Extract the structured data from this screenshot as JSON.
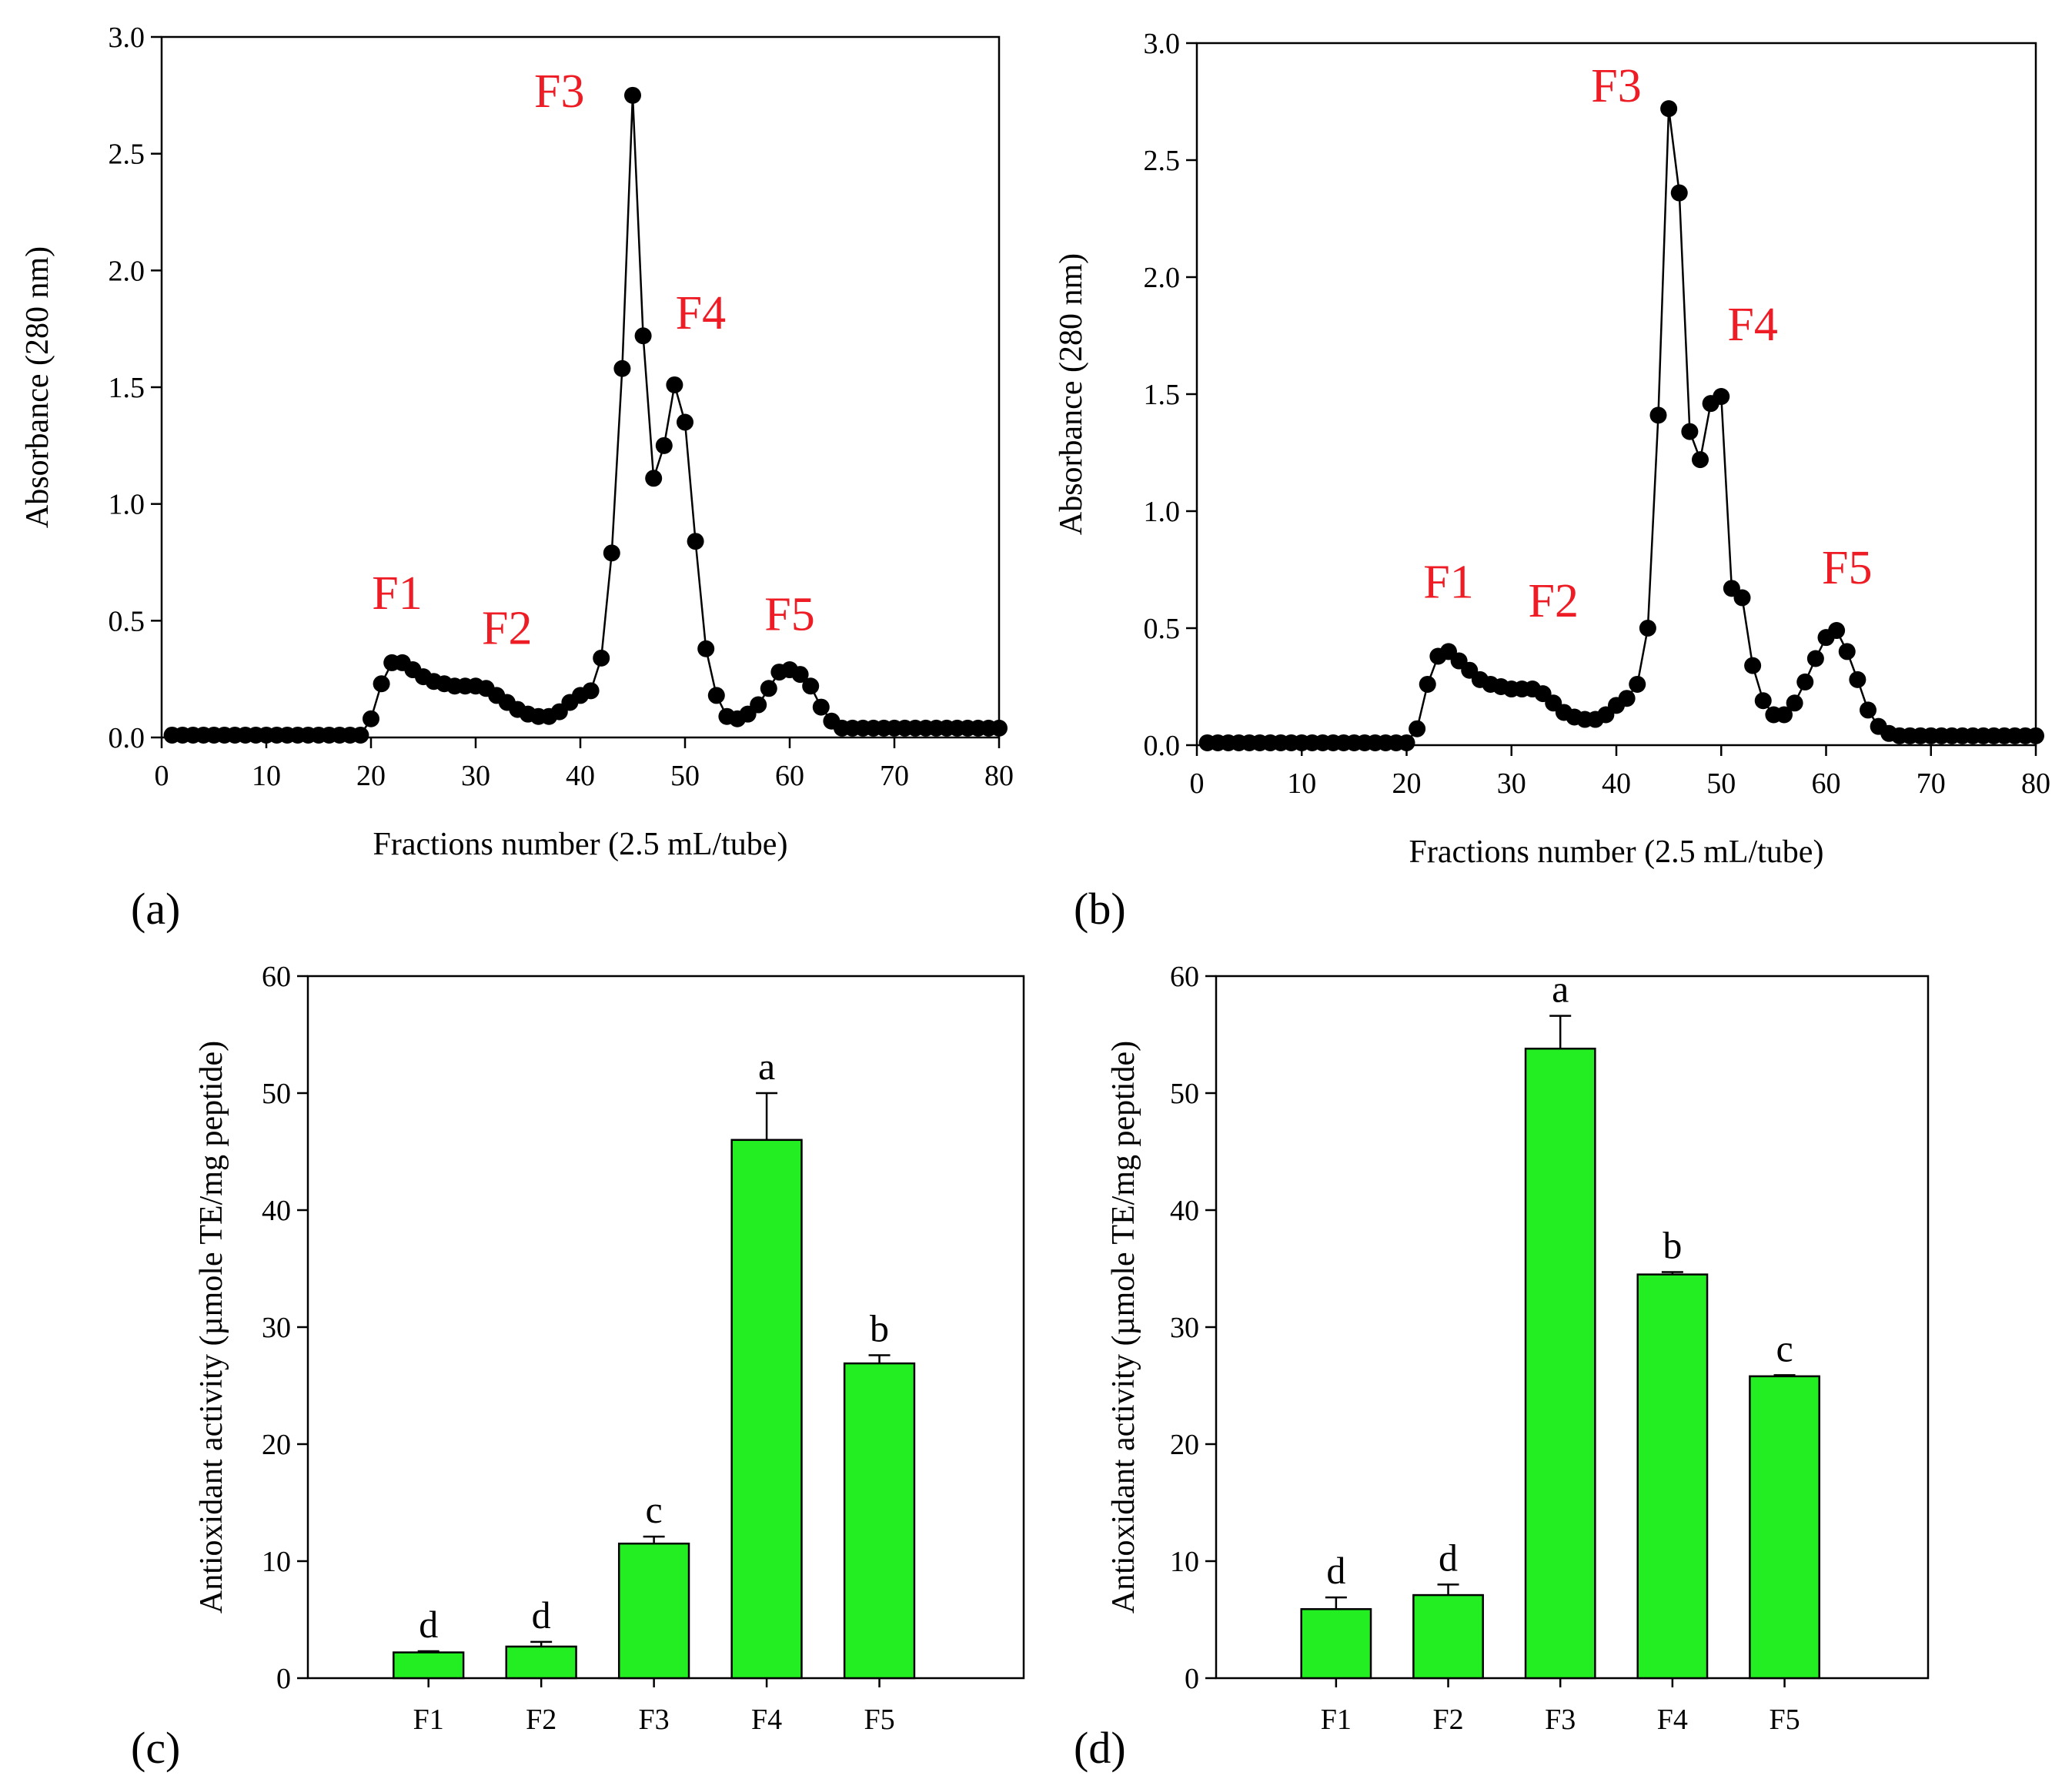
{
  "chart_data": [
    {
      "type": "line",
      "panel_label": "(a)",
      "xlabel": "Fractions number (2.5 mL/tube)",
      "ylabel": "Absorbance (280 nm)",
      "xlim": [
        0,
        80
      ],
      "ylim": [
        0,
        3.0
      ],
      "xticks": [
        "0",
        "10",
        "20",
        "30",
        "40",
        "50",
        "60",
        "70",
        "80"
      ],
      "yticks": [
        "0.0",
        "0.5",
        "1.0",
        "1.5",
        "2.0",
        "2.5",
        "3.0"
      ],
      "grid": false,
      "x": [
        1,
        2,
        3,
        4,
        5,
        6,
        7,
        8,
        9,
        10,
        11,
        12,
        13,
        14,
        15,
        16,
        17,
        18,
        19,
        20,
        21,
        22,
        23,
        24,
        25,
        26,
        27,
        28,
        29,
        30,
        31,
        32,
        33,
        34,
        35,
        36,
        37,
        38,
        39,
        40,
        41,
        42,
        43,
        44,
        45,
        46,
        47,
        48,
        49,
        50,
        51,
        52,
        53,
        54,
        55,
        56,
        57,
        58,
        59,
        60,
        61,
        62,
        63,
        64,
        65,
        66,
        67,
        68,
        69,
        70,
        71,
        72,
        73,
        74,
        75,
        76,
        77,
        78,
        79,
        80
      ],
      "y": [
        0.01,
        0.01,
        0.01,
        0.01,
        0.01,
        0.01,
        0.01,
        0.01,
        0.01,
        0.01,
        0.01,
        0.01,
        0.01,
        0.01,
        0.01,
        0.01,
        0.01,
        0.01,
        0.01,
        0.08,
        0.23,
        0.32,
        0.32,
        0.29,
        0.26,
        0.24,
        0.23,
        0.22,
        0.22,
        0.22,
        0.21,
        0.18,
        0.15,
        0.12,
        0.1,
        0.09,
        0.09,
        0.11,
        0.15,
        0.18,
        0.2,
        0.34,
        0.79,
        1.58,
        2.75,
        1.72,
        1.11,
        1.25,
        1.51,
        1.35,
        0.84,
        0.38,
        0.18,
        0.09,
        0.08,
        0.1,
        0.14,
        0.21,
        0.28,
        0.29,
        0.27,
        0.22,
        0.13,
        0.07,
        0.04,
        0.04,
        0.04,
        0.04,
        0.04,
        0.04,
        0.04,
        0.04,
        0.04,
        0.04,
        0.04,
        0.04,
        0.04,
        0.04,
        0.04,
        0.04
      ],
      "annotations": [
        {
          "text": "F1",
          "x": 22.5,
          "y": 0.55
        },
        {
          "text": "F2",
          "x": 33,
          "y": 0.4
        },
        {
          "text": "F3",
          "x": 38,
          "y": 2.7
        },
        {
          "text": "F4",
          "x": 51.5,
          "y": 1.75
        },
        {
          "text": "F5",
          "x": 60,
          "y": 0.46
        }
      ],
      "colors": {
        "line": "#000000",
        "marker": "#000000",
        "annotation": "#ee1c25"
      }
    },
    {
      "type": "line",
      "panel_label": "(b)",
      "xlabel": "Fractions number (2.5 mL/tube)",
      "ylabel": "Absorbance (280 nm)",
      "xlim": [
        0,
        80
      ],
      "ylim": [
        0,
        3.0
      ],
      "xticks": [
        "0",
        "10",
        "20",
        "30",
        "40",
        "50",
        "60",
        "70",
        "80"
      ],
      "yticks": [
        "0.0",
        "0.5",
        "1.0",
        "1.5",
        "2.0",
        "2.5",
        "3.0"
      ],
      "grid": false,
      "x": [
        1,
        2,
        3,
        4,
        5,
        6,
        7,
        8,
        9,
        10,
        11,
        12,
        13,
        14,
        15,
        16,
        17,
        18,
        19,
        20,
        21,
        22,
        23,
        24,
        25,
        26,
        27,
        28,
        29,
        30,
        31,
        32,
        33,
        34,
        35,
        36,
        37,
        38,
        39,
        40,
        41,
        42,
        43,
        44,
        45,
        46,
        47,
        48,
        49,
        50,
        51,
        52,
        53,
        54,
        55,
        56,
        57,
        58,
        59,
        60,
        61,
        62,
        63,
        64,
        65,
        66,
        67,
        68,
        69,
        70,
        71,
        72,
        73,
        74,
        75,
        76,
        77,
        78,
        79,
        80
      ],
      "y": [
        0.01,
        0.01,
        0.01,
        0.01,
        0.01,
        0.01,
        0.01,
        0.01,
        0.01,
        0.01,
        0.01,
        0.01,
        0.01,
        0.01,
        0.01,
        0.01,
        0.01,
        0.01,
        0.01,
        0.01,
        0.07,
        0.26,
        0.38,
        0.4,
        0.36,
        0.32,
        0.28,
        0.26,
        0.25,
        0.24,
        0.24,
        0.24,
        0.22,
        0.18,
        0.14,
        0.12,
        0.11,
        0.11,
        0.13,
        0.17,
        0.2,
        0.26,
        0.5,
        1.41,
        2.72,
        2.36,
        1.34,
        1.22,
        1.46,
        1.49,
        0.67,
        0.63,
        0.34,
        0.19,
        0.13,
        0.13,
        0.18,
        0.27,
        0.37,
        0.46,
        0.49,
        0.4,
        0.28,
        0.15,
        0.08,
        0.05,
        0.04,
        0.04,
        0.04,
        0.04,
        0.04,
        0.04,
        0.04,
        0.04,
        0.04,
        0.04,
        0.04,
        0.04,
        0.04,
        0.04
      ],
      "annotations": [
        {
          "text": "F1",
          "x": 24,
          "y": 0.63
        },
        {
          "text": "F2",
          "x": 34,
          "y": 0.55
        },
        {
          "text": "F3",
          "x": 40,
          "y": 2.75
        },
        {
          "text": "F4",
          "x": 53,
          "y": 1.73
        },
        {
          "text": "F5",
          "x": 62,
          "y": 0.69
        }
      ],
      "colors": {
        "line": "#000000",
        "marker": "#000000",
        "annotation": "#ee1c25"
      }
    },
    {
      "type": "bar",
      "panel_label": "(c)",
      "xlabel": "",
      "ylabel": "Antioxidant activity (µmole TE/mg peptide)",
      "categories": [
        "F1",
        "F2",
        "F3",
        "F4",
        "F5"
      ],
      "values": [
        2.2,
        2.7,
        11.5,
        46.0,
        26.9
      ],
      "errors": [
        0.1,
        0.4,
        0.6,
        4.0,
        0.7
      ],
      "labels": [
        "d",
        "d",
        "c",
        "a",
        "b"
      ],
      "ylim": [
        0,
        60
      ],
      "yticks": [
        "0",
        "10",
        "20",
        "30",
        "40",
        "50",
        "60"
      ],
      "grid": false,
      "colors": {
        "bar": "#22ee22",
        "edge": "#000000"
      }
    },
    {
      "type": "bar",
      "panel_label": "(d)",
      "xlabel": "",
      "ylabel": "Antioxidant activity (µmole TE/mg peptide)",
      "categories": [
        "F1",
        "F2",
        "F3",
        "F4",
        "F5"
      ],
      "values": [
        5.9,
        7.1,
        53.8,
        34.5,
        25.8
      ],
      "errors": [
        1.0,
        0.9,
        2.8,
        0.2,
        0.1
      ],
      "labels": [
        "d",
        "d",
        "a",
        "b",
        "c"
      ],
      "ylim": [
        0,
        60
      ],
      "yticks": [
        "0",
        "10",
        "20",
        "30",
        "40",
        "50",
        "60"
      ],
      "grid": false,
      "colors": {
        "bar": "#22ee22",
        "edge": "#000000"
      }
    }
  ]
}
